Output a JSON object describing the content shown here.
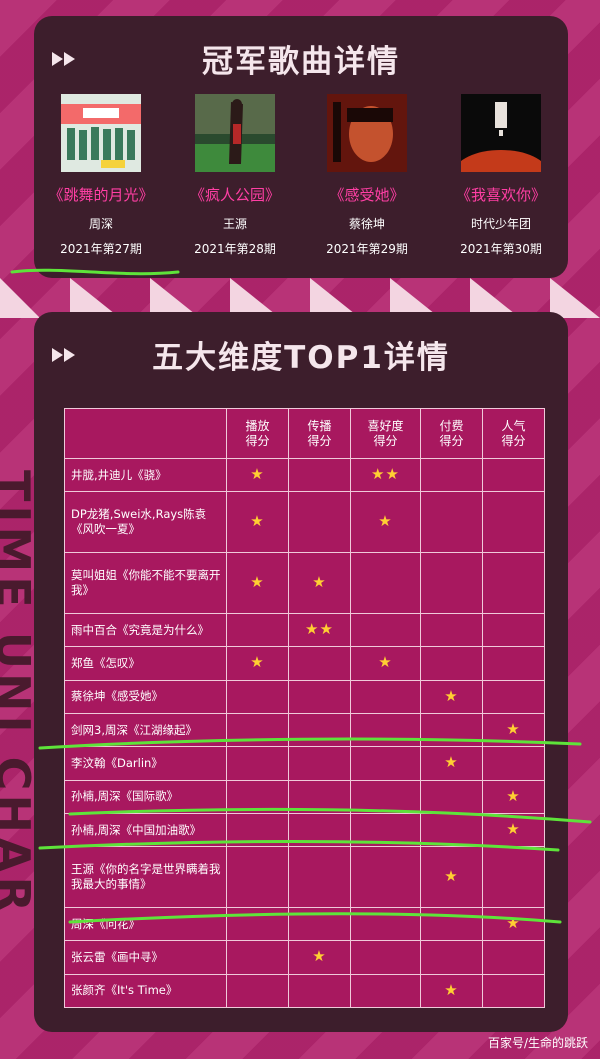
{
  "top": {
    "title": "冠军歌曲详情",
    "songs": [
      {
        "title": "《跳舞的月光》",
        "artist": "周深",
        "issue": "2021年第27期",
        "cover_icon": "album-cover-dance-moonlight"
      },
      {
        "title": "《疯人公园》",
        "artist": "王源",
        "issue": "2021年第28期",
        "cover_icon": "album-cover-crazy-park"
      },
      {
        "title": "《感受她》",
        "artist": "蔡徐坤",
        "issue": "2021年第29期",
        "cover_icon": "album-cover-feel-her"
      },
      {
        "title": "《我喜欢你》",
        "artist": "时代少年团",
        "issue": "2021年第30期",
        "cover_icon": "album-cover-i-like-you"
      }
    ]
  },
  "bottom": {
    "title": "五大维度TOP1详情",
    "headers": [
      "播放\n得分",
      "传播\n得分",
      "喜好度\n得分",
      "付费\n得分",
      "人气\n得分"
    ],
    "rows": [
      {
        "name": "井胧,井迪儿《骁》",
        "stars": [
          1,
          0,
          2,
          0,
          0
        ]
      },
      {
        "name": "DP龙猪,Swei水,Rays陈袁《风吹一夏》",
        "stars": [
          1,
          0,
          1,
          0,
          0
        ]
      },
      {
        "name": "莫叫姐姐《你能不能不要离开我》",
        "stars": [
          1,
          1,
          0,
          0,
          0
        ]
      },
      {
        "name": "雨中百合《究竟是为什么》",
        "stars": [
          0,
          2,
          0,
          0,
          0
        ]
      },
      {
        "name": "郑鱼《怎叹》",
        "stars": [
          1,
          0,
          1,
          0,
          0
        ]
      },
      {
        "name": "蔡徐坤《感受她》",
        "stars": [
          0,
          0,
          0,
          1,
          0
        ]
      },
      {
        "name": "剑网3,周深《江湖缘起》",
        "stars": [
          0,
          0,
          0,
          0,
          1
        ]
      },
      {
        "name": "李汶翰《Darlin》",
        "stars": [
          0,
          0,
          0,
          1,
          0
        ]
      },
      {
        "name": "孙楠,周深《国际歌》",
        "stars": [
          0,
          0,
          0,
          0,
          1
        ]
      },
      {
        "name": "孙楠,周深《中国加油歌》",
        "stars": [
          0,
          0,
          0,
          0,
          1
        ]
      },
      {
        "name": "王源《你的名字是世界瞒着我我最大的事情》",
        "stars": [
          0,
          0,
          0,
          1,
          0
        ]
      },
      {
        "name": "周深《问花》",
        "stars": [
          0,
          0,
          0,
          0,
          1
        ]
      },
      {
        "name": "张云雷《画中寻》",
        "stars": [
          0,
          1,
          0,
          0,
          0
        ]
      },
      {
        "name": "张颜齐《It's Time》",
        "stars": [
          0,
          0,
          0,
          1,
          0
        ]
      }
    ]
  },
  "side_text": "TIME UNI CHAR",
  "watermark": "百家号/生命的跳跃",
  "colors": {
    "panel": "#3d1e2c",
    "background": "#b4266f",
    "accent_pink": "#ff3fa4",
    "star": "#ffcf33",
    "highlight_line": "#5ee33a"
  }
}
